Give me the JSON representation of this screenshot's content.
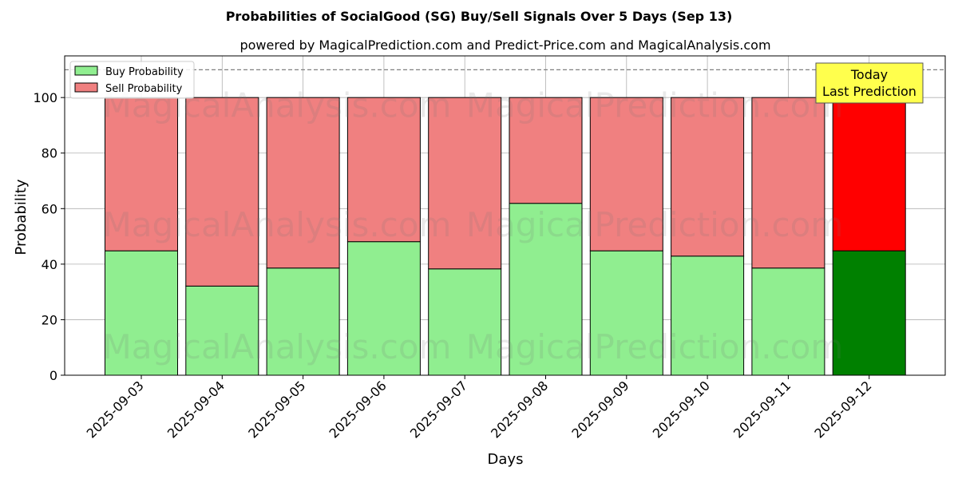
{
  "chart_data": {
    "type": "bar",
    "stacked": true,
    "title": "Probabilities of SocialGood (SG) Buy/Sell Signals Over 5 Days (Sep 13)",
    "subtitle": "powered by MagicalPrediction.com and Predict-Price.com and MagicalAnalysis.com",
    "xlabel": "Days",
    "ylabel": "Probability",
    "ylim": [
      0,
      115
    ],
    "yticks": [
      0,
      20,
      40,
      60,
      80,
      100
    ],
    "reference_line": 110,
    "grid": true,
    "legend_position": "top-left",
    "categories": [
      "2025-09-03",
      "2025-09-04",
      "2025-09-05",
      "2025-09-06",
      "2025-09-07",
      "2025-09-08",
      "2025-09-09",
      "2025-09-10",
      "2025-09-11",
      "2025-09-12"
    ],
    "series": [
      {
        "name": "Buy Probability",
        "values": [
          44.8,
          32.1,
          38.6,
          48.1,
          38.3,
          61.9,
          44.8,
          42.9,
          38.6,
          44.8
        ],
        "color": "#90ee90",
        "highlight_color": "#008000"
      },
      {
        "name": "Sell Probability",
        "values": [
          55.2,
          67.9,
          61.4,
          51.9,
          61.7,
          38.1,
          55.2,
          57.1,
          61.4,
          55.2
        ],
        "color": "#f08080",
        "highlight_color": "#ff0000"
      }
    ],
    "highlight_index": 9,
    "annotation": {
      "line1": "Today",
      "line2": "Last Prediction",
      "background": "#ffff4d"
    },
    "watermarks": [
      "MagicalAnalysis.com",
      "MagicalPrediction.com"
    ]
  }
}
